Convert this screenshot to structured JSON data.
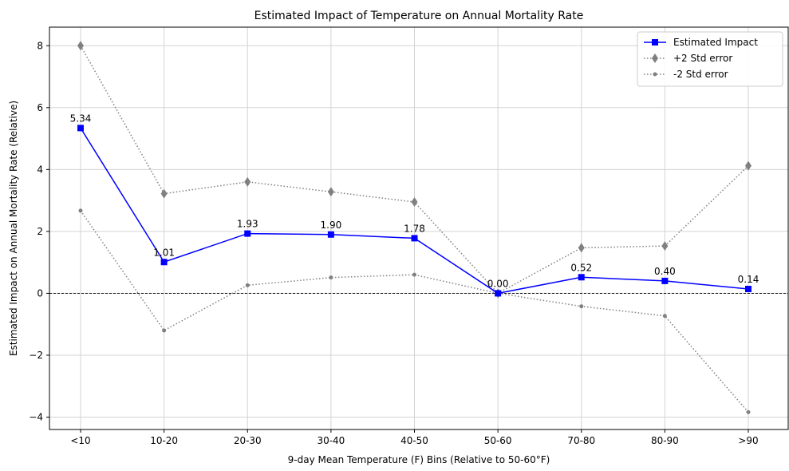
{
  "chart_data": {
    "type": "line",
    "title": "Estimated Impact of Temperature on Annual Mortality Rate",
    "xlabel": "9-day Mean Temperature (F) Bins (Relative to 50-60°F)",
    "ylabel": "Estimated Impact on Annual Mortality Rate (Relative)",
    "categories": [
      "<10",
      "10-20",
      "20-30",
      "30-40",
      "40-50",
      "50-60",
      "70-80",
      "80-90",
      ">90"
    ],
    "ylim": [
      -4.4,
      8.6
    ],
    "yticks": [
      -4,
      -2,
      0,
      2,
      4,
      6,
      8
    ],
    "grid": true,
    "legend_position": "top-right",
    "reference_line_y": 0,
    "series": [
      {
        "name": "Estimated Impact",
        "values": [
          5.34,
          1.01,
          1.93,
          1.9,
          1.78,
          0.0,
          0.52,
          0.4,
          0.14
        ],
        "data_labels": [
          "5.34",
          "1.01",
          "1.93",
          "1.90",
          "1.78",
          "0.00",
          "0.52",
          "0.40",
          "0.14"
        ],
        "color": "#0000ff",
        "marker": "square",
        "line_style": "solid"
      },
      {
        "name": "+2 Std error",
        "values": [
          8.0,
          3.22,
          3.6,
          3.28,
          2.95,
          0.0,
          1.47,
          1.53,
          4.12
        ],
        "color": "#808080",
        "marker": "thin-diamond",
        "line_style": "dotted"
      },
      {
        "name": "-2 Std error",
        "values": [
          2.67,
          -1.2,
          0.26,
          0.51,
          0.6,
          0.0,
          -0.42,
          -0.73,
          -3.84
        ],
        "color": "#808080",
        "marker": "point",
        "line_style": "dotted"
      }
    ]
  }
}
